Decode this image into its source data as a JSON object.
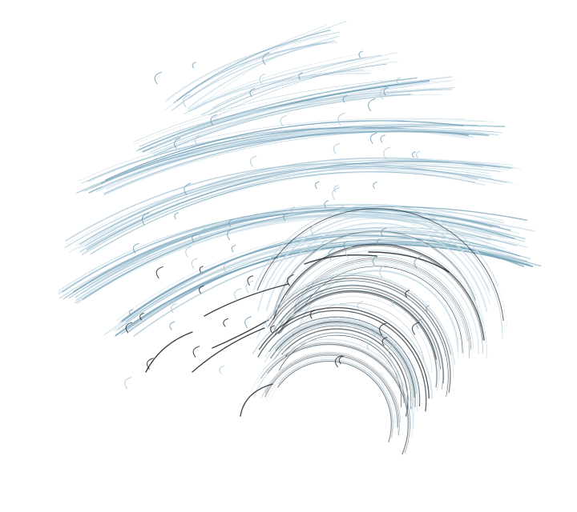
{
  "artwork": {
    "background_color": "#ffffff",
    "palette": {
      "steel_blue": "#6f9fb6",
      "pale_blue": "#a9c8d8",
      "ice_blue": "#c9dde8",
      "charcoal": "#1e2328",
      "slate": "#4a5359"
    },
    "description_icon": "feather-swirl-icon"
  }
}
